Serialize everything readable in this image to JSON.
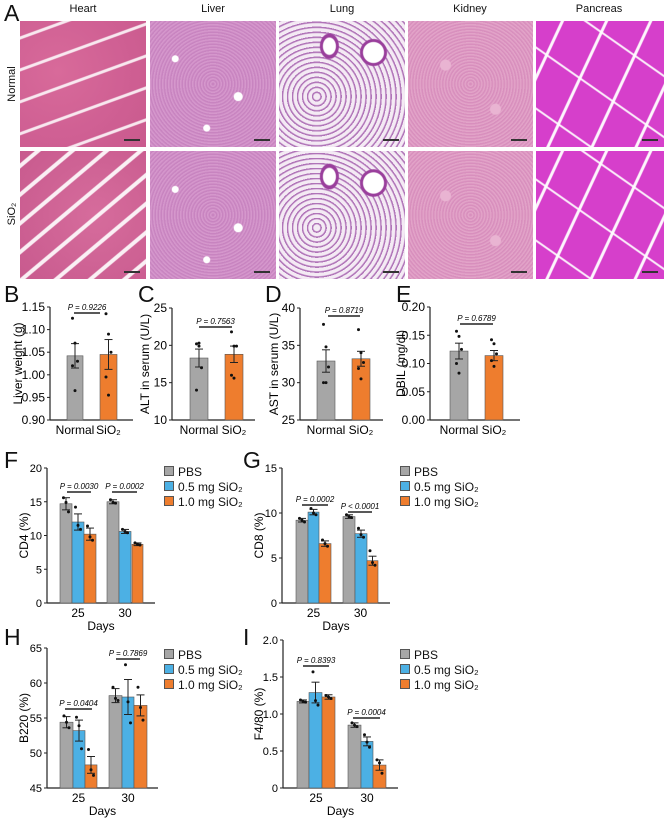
{
  "panel_letters": [
    "A",
    "B",
    "C",
    "D",
    "E",
    "F",
    "G",
    "H",
    "I"
  ],
  "histology": {
    "columns": [
      "Heart",
      "Liver",
      "Lung",
      "Kidney",
      "Pancreas"
    ],
    "rows": [
      "Normal",
      "SiO₂"
    ]
  },
  "colors": {
    "PBS": "#a6a6a6",
    "0.5 mg SiO₂": "#4cb0e4",
    "1.0 mg SiO₂": "#ee7d2e",
    "Normal": "#a6a6a6",
    "SiO₂": "#ee7d2e"
  },
  "legend": [
    "PBS",
    "0.5 mg SiO₂",
    "1.0 mg SiO₂"
  ],
  "chart_data": [
    {
      "id": "B",
      "type": "bar",
      "ylabel": "Liver weight (g)",
      "xlabel": "",
      "ylim": [
        0.9,
        1.15
      ],
      "yticks": [
        "0.90",
        "0.95",
        "1.00",
        "1.05",
        "1.10",
        "1.15"
      ],
      "categories": [
        "Normal",
        "SiO₂"
      ],
      "values": [
        1.042,
        1.045
      ],
      "sem": [
        0.027,
        0.033
      ],
      "points": [
        [
          1.125,
          1.07,
          1.03,
          1.02,
          0.965
        ],
        [
          1.135,
          1.09,
          1.05,
          0.995,
          0.955
        ]
      ],
      "pvalues": [
        "P = 0.9226"
      ]
    },
    {
      "id": "C",
      "type": "bar",
      "ylabel": "ALT in serum (U/L)",
      "xlabel": "",
      "ylim": [
        10,
        25
      ],
      "yticks": [
        "10",
        "15",
        "20",
        "25"
      ],
      "categories": [
        "Normal",
        "SiO₂"
      ],
      "values": [
        18.3,
        18.8
      ],
      "sem": [
        1.2,
        1.1
      ],
      "points": [
        [
          20.2,
          20.3,
          17.0,
          14.0,
          19.9
        ],
        [
          21.8,
          19.9,
          19.9,
          16.0,
          15.6
        ]
      ],
      "pvalues": [
        "P = 0.7563"
      ]
    },
    {
      "id": "D",
      "type": "bar",
      "ylabel": "AST in serum (U/L)",
      "xlabel": "",
      "ylim": [
        25,
        40
      ],
      "yticks": [
        "25",
        "30",
        "35",
        "40"
      ],
      "categories": [
        "Normal",
        "SiO₂"
      ],
      "values": [
        32.9,
        33.2
      ],
      "sem": [
        1.5,
        1.0
      ],
      "points": [
        [
          37.8,
          34.8,
          32.1,
          30.0,
          30.0
        ],
        [
          37.1,
          34.0,
          32.7,
          31.9,
          30.5
        ]
      ],
      "pvalues": [
        "P = 0.8719"
      ]
    },
    {
      "id": "E",
      "type": "bar",
      "ylabel": "DBIL (mg/dl)",
      "xlabel": "",
      "ylim": [
        0,
        0.2
      ],
      "yticks": [
        "0.00",
        "0.05",
        "0.10",
        "0.15",
        "0.20"
      ],
      "categories": [
        "Normal",
        "SiO₂"
      ],
      "values": [
        0.122,
        0.114
      ],
      "sem": [
        0.014,
        0.009
      ],
      "points": [
        [
          0.157,
          0.148,
          0.125,
          0.1,
          0.083
        ],
        [
          0.142,
          0.135,
          0.117,
          0.105,
          0.095
        ]
      ],
      "pvalues": [
        "P = 0.6789"
      ]
    },
    {
      "id": "F",
      "type": "bar",
      "ylabel": "CD4 (%)",
      "xlabel": "Days",
      "ylim": [
        0,
        20
      ],
      "yticks": [
        "0",
        "5",
        "10",
        "15",
        "20"
      ],
      "categories": [
        "25",
        "30"
      ],
      "series": [
        {
          "name": "PBS",
          "values": [
            14.7,
            15.0
          ],
          "sem": [
            0.9,
            0.3
          ],
          "points": [
            [
              15.6,
              14.9,
              13.5
            ],
            [
              15.3,
              14.9,
              14.8
            ]
          ]
        },
        {
          "name": "0.5 mg SiO₂",
          "values": [
            12.0,
            10.6
          ],
          "sem": [
            1.2,
            0.3
          ],
          "points": [
            [
              14.2,
              11.5,
              10.9
            ],
            [
              10.9,
              10.6,
              10.4
            ]
          ]
        },
        {
          "name": "1.0 mg SiO₂",
          "values": [
            10.2,
            8.7
          ],
          "sem": [
            0.9,
            0.2
          ],
          "points": [
            [
              11.4,
              9.8,
              9.3
            ],
            [
              8.9,
              8.7,
              8.6
            ]
          ]
        }
      ],
      "pvalues": [
        "P = 0.0030",
        "P = 0.0002"
      ]
    },
    {
      "id": "G",
      "type": "bar",
      "ylabel": "CD8 (%)",
      "xlabel": "Days",
      "ylim": [
        0,
        15
      ],
      "yticks": [
        "0",
        "5",
        "10",
        "15"
      ],
      "categories": [
        "25",
        "30"
      ],
      "series": [
        {
          "name": "PBS",
          "values": [
            9.2,
            9.6
          ],
          "sem": [
            0.2,
            0.2
          ],
          "points": [
            [
              9.4,
              9.2,
              9.0
            ],
            [
              9.8,
              9.6,
              9.5
            ]
          ]
        },
        {
          "name": "0.5 mg SiO₂",
          "values": [
            10.1,
            7.7
          ],
          "sem": [
            0.3,
            0.4
          ],
          "points": [
            [
              10.5,
              10.0,
              9.8
            ],
            [
              8.3,
              7.6,
              7.3
            ]
          ]
        },
        {
          "name": "1.0 mg SiO₂",
          "values": [
            6.6,
            4.7
          ],
          "sem": [
            0.3,
            0.5
          ],
          "points": [
            [
              7.0,
              6.6,
              6.3
            ],
            [
              5.8,
              4.5,
              4.2
            ]
          ]
        }
      ],
      "pvalues": [
        "P = 0.0002",
        "P < 0.0001"
      ]
    },
    {
      "id": "H",
      "type": "bar",
      "ylabel": "B220 (%)",
      "xlabel": "Days",
      "ylim": [
        45,
        65
      ],
      "yticks": [
        "45",
        "50",
        "55",
        "60",
        "65"
      ],
      "categories": [
        "25",
        "30"
      ],
      "series": [
        {
          "name": "PBS",
          "values": [
            54.4,
            58.2
          ],
          "sem": [
            0.8,
            1.0
          ],
          "points": [
            [
              55.3,
              54.4,
              53.6
            ],
            [
              59.4,
              57.8,
              57.5
            ]
          ]
        },
        {
          "name": "0.5 mg SiO₂",
          "values": [
            53.2,
            58.0
          ],
          "sem": [
            1.5,
            2.5
          ],
          "points": [
            [
              55.1,
              53.9,
              50.6
            ],
            [
              62.6,
              57.3,
              54.3
            ]
          ]
        },
        {
          "name": "1.0 mg SiO₂",
          "values": [
            48.3,
            56.8
          ],
          "sem": [
            1.2,
            1.5
          ],
          "points": [
            [
              50.5,
              47.6,
              46.8
            ],
            [
              59.4,
              56.5,
              54.7
            ]
          ]
        }
      ],
      "pvalues": [
        "P = 0.0404",
        "P = 0.7869"
      ]
    },
    {
      "id": "I",
      "type": "bar",
      "ylabel": "F4/80 (%)",
      "xlabel": "Days",
      "ylim": [
        0,
        2.0
      ],
      "yticks": [
        "0",
        "0.5",
        "1.0",
        "1.5",
        "2.0"
      ],
      "categories": [
        "25",
        "30"
      ],
      "series": [
        {
          "name": "PBS",
          "values": [
            1.17,
            0.85
          ],
          "sem": [
            0.02,
            0.03
          ],
          "points": [
            [
              1.19,
              1.17,
              1.16
            ],
            [
              0.88,
              0.85,
              0.83
            ]
          ]
        },
        {
          "name": "0.5 mg SiO₂",
          "values": [
            1.29,
            0.63
          ],
          "sem": [
            0.14,
            0.06
          ],
          "points": [
            [
              1.57,
              1.18,
              1.12
            ],
            [
              0.72,
              0.62,
              0.55
            ]
          ]
        },
        {
          "name": "1.0 mg SiO₂",
          "values": [
            1.23,
            0.31
          ],
          "sem": [
            0.03,
            0.07
          ],
          "points": [
            [
              1.25,
              1.23,
              1.21
            ],
            [
              0.38,
              0.34,
              0.2
            ]
          ]
        }
      ],
      "pvalues": [
        "P = 0.8393",
        "P = 0.0004"
      ]
    }
  ]
}
